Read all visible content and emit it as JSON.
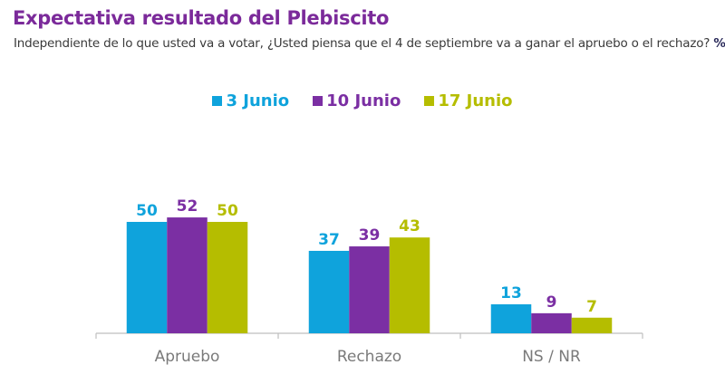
{
  "header": {
    "title": "Expectativa resultado del Plebiscito",
    "subtitle": "Independiente de lo que usted va a votar, ¿Usted piensa que el 4 de septiembre va a ganar el apruebo o el rechazo?",
    "unit": "%"
  },
  "chart_data": {
    "type": "bar",
    "title": "Expectativa resultado del Plebiscito",
    "subtitle": "Independiente de lo que usted va a votar, ¿Usted piensa que el 4 de septiembre va a ganar el apruebo o el rechazo? %",
    "xlabel": "",
    "ylabel": "",
    "categories": [
      "Apruebo",
      "Rechazo",
      "NS / NR"
    ],
    "series": [
      {
        "name": "3 Junio",
        "color": "#0fa3dc",
        "values": [
          50,
          37,
          13
        ]
      },
      {
        "name": "10 Junio",
        "color": "#7b2fa3",
        "values": [
          52,
          39,
          9
        ]
      },
      {
        "name": "17 Junio",
        "color": "#b5bd00",
        "values": [
          50,
          43,
          7
        ]
      }
    ],
    "ylim": [
      0,
      60
    ],
    "grid": false,
    "legend": "top-center",
    "data_labels": true
  }
}
